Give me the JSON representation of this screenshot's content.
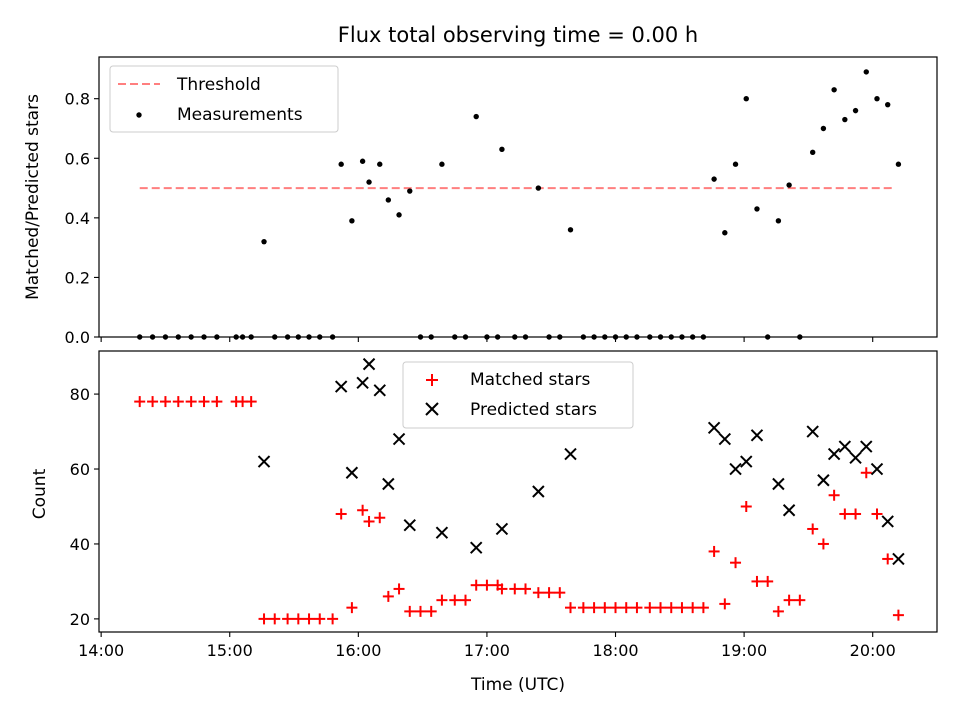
{
  "chart_data": [
    {
      "type": "scatter",
      "title": "Flux total observing time = 0.00 h",
      "xlabel": "",
      "ylabel": "Matched/Predicted stars",
      "x_ticks": [
        "14:00",
        "15:00",
        "16:00",
        "17:00",
        "18:00",
        "19:00",
        "20:00"
      ],
      "y_ticks": [
        "0.0",
        "0.2",
        "0.4",
        "0.6",
        "0.8"
      ],
      "xlim": [
        "13:59",
        "20:30"
      ],
      "ylim": [
        0.0,
        0.94
      ],
      "grid": false,
      "legend": {
        "placement": "top-left",
        "entries": [
          "Threshold",
          "Measurements"
        ]
      },
      "threshold": {
        "name": "Threshold",
        "value": 0.5,
        "x_start": "14:18",
        "x_end": "20:10",
        "style": "dashed",
        "color": "#ff7f7f"
      },
      "series": [
        {
          "name": "Measurements",
          "color": "#000000",
          "points": [
            [
              "14:18",
              0.0
            ],
            [
              "14:24",
              0.0
            ],
            [
              "14:30",
              0.0
            ],
            [
              "14:36",
              0.0
            ],
            [
              "14:42",
              0.0
            ],
            [
              "14:48",
              0.0
            ],
            [
              "14:54",
              0.0
            ],
            [
              "15:03",
              0.0
            ],
            [
              "15:06",
              0.0
            ],
            [
              "15:10",
              0.0
            ],
            [
              "15:16",
              0.32
            ],
            [
              "15:21",
              0.0
            ],
            [
              "15:27",
              0.0
            ],
            [
              "15:32",
              0.0
            ],
            [
              "15:37",
              0.0
            ],
            [
              "15:42",
              0.0
            ],
            [
              "15:48",
              0.0
            ],
            [
              "15:52",
              0.58
            ],
            [
              "15:57",
              0.39
            ],
            [
              "16:02",
              0.59
            ],
            [
              "16:05",
              0.52
            ],
            [
              "16:10",
              0.58
            ],
            [
              "16:14",
              0.46
            ],
            [
              "16:19",
              0.41
            ],
            [
              "16:24",
              0.49
            ],
            [
              "16:29",
              0.0
            ],
            [
              "16:34",
              0.0
            ],
            [
              "16:39",
              0.58
            ],
            [
              "16:45",
              0.0
            ],
            [
              "16:50",
              0.0
            ],
            [
              "16:55",
              0.74
            ],
            [
              "17:00",
              0.0
            ],
            [
              "17:05",
              0.0
            ],
            [
              "17:07",
              0.63
            ],
            [
              "17:13",
              0.0
            ],
            [
              "17:18",
              0.0
            ],
            [
              "17:24",
              0.5
            ],
            [
              "17:29",
              0.0
            ],
            [
              "17:34",
              0.0
            ],
            [
              "17:39",
              0.36
            ],
            [
              "17:45",
              0.0
            ],
            [
              "17:50",
              0.0
            ],
            [
              "17:55",
              0.0
            ],
            [
              "18:00",
              0.0
            ],
            [
              "18:05",
              0.0
            ],
            [
              "18:10",
              0.0
            ],
            [
              "18:16",
              0.0
            ],
            [
              "18:21",
              0.0
            ],
            [
              "18:26",
              0.0
            ],
            [
              "18:31",
              0.0
            ],
            [
              "18:36",
              0.0
            ],
            [
              "18:41",
              0.0
            ],
            [
              "18:46",
              0.53
            ],
            [
              "18:51",
              0.35
            ],
            [
              "18:56",
              0.58
            ],
            [
              "19:01",
              0.8
            ],
            [
              "19:06",
              0.43
            ],
            [
              "19:11",
              0.0
            ],
            [
              "19:16",
              0.39
            ],
            [
              "19:21",
              0.51
            ],
            [
              "19:26",
              0.0
            ],
            [
              "19:32",
              0.62
            ],
            [
              "19:37",
              0.7
            ],
            [
              "19:42",
              0.83
            ],
            [
              "19:47",
              0.73
            ],
            [
              "19:52",
              0.76
            ],
            [
              "19:57",
              0.89
            ],
            [
              "20:02",
              0.8
            ],
            [
              "20:07",
              0.78
            ],
            [
              "20:12",
              0.58
            ]
          ]
        }
      ]
    },
    {
      "type": "scatter",
      "title": "",
      "xlabel": "Time (UTC)",
      "ylabel": "Count",
      "x_ticks": [
        "14:00",
        "15:00",
        "16:00",
        "17:00",
        "18:00",
        "19:00",
        "20:00"
      ],
      "y_ticks": [
        "20",
        "40",
        "60",
        "80"
      ],
      "xlim": [
        "13:59",
        "20:30"
      ],
      "ylim": [
        16.5,
        91.5
      ],
      "grid": false,
      "legend": {
        "placement": "top-center",
        "entries": [
          "Matched stars",
          "Predicted stars"
        ]
      },
      "series": [
        {
          "name": "Matched stars",
          "marker": "plus",
          "color": "#ff0000",
          "points": [
            [
              "14:18",
              78
            ],
            [
              "14:24",
              78
            ],
            [
              "14:30",
              78
            ],
            [
              "14:36",
              78
            ],
            [
              "14:42",
              78
            ],
            [
              "14:48",
              78
            ],
            [
              "14:54",
              78
            ],
            [
              "15:03",
              78
            ],
            [
              "15:06",
              78
            ],
            [
              "15:10",
              78
            ],
            [
              "15:16",
              20
            ],
            [
              "15:21",
              20
            ],
            [
              "15:27",
              20
            ],
            [
              "15:32",
              20
            ],
            [
              "15:37",
              20
            ],
            [
              "15:42",
              20
            ],
            [
              "15:48",
              20
            ],
            [
              "15:52",
              48
            ],
            [
              "15:57",
              23
            ],
            [
              "16:02",
              49
            ],
            [
              "16:05",
              46
            ],
            [
              "16:10",
              47
            ],
            [
              "16:14",
              26
            ],
            [
              "16:19",
              28
            ],
            [
              "16:24",
              22
            ],
            [
              "16:29",
              22
            ],
            [
              "16:34",
              22
            ],
            [
              "16:39",
              25
            ],
            [
              "16:45",
              25
            ],
            [
              "16:50",
              25
            ],
            [
              "16:55",
              29
            ],
            [
              "17:00",
              29
            ],
            [
              "17:05",
              29
            ],
            [
              "17:07",
              28
            ],
            [
              "17:13",
              28
            ],
            [
              "17:18",
              28
            ],
            [
              "17:24",
              27
            ],
            [
              "17:29",
              27
            ],
            [
              "17:34",
              27
            ],
            [
              "17:39",
              23
            ],
            [
              "17:45",
              23
            ],
            [
              "17:50",
              23
            ],
            [
              "17:55",
              23
            ],
            [
              "18:00",
              23
            ],
            [
              "18:05",
              23
            ],
            [
              "18:10",
              23
            ],
            [
              "18:16",
              23
            ],
            [
              "18:21",
              23
            ],
            [
              "18:26",
              23
            ],
            [
              "18:31",
              23
            ],
            [
              "18:36",
              23
            ],
            [
              "18:41",
              23
            ],
            [
              "18:46",
              38
            ],
            [
              "18:51",
              24
            ],
            [
              "18:56",
              35
            ],
            [
              "19:01",
              50
            ],
            [
              "19:06",
              30
            ],
            [
              "19:11",
              30
            ],
            [
              "19:16",
              22
            ],
            [
              "19:21",
              25
            ],
            [
              "19:26",
              25
            ],
            [
              "19:32",
              44
            ],
            [
              "19:37",
              40
            ],
            [
              "19:42",
              53
            ],
            [
              "19:47",
              48
            ],
            [
              "19:52",
              48
            ],
            [
              "19:57",
              59
            ],
            [
              "20:02",
              48
            ],
            [
              "20:07",
              36
            ],
            [
              "20:12",
              21
            ]
          ]
        },
        {
          "name": "Predicted stars",
          "marker": "x",
          "color": "#000000",
          "points": [
            [
              "15:16",
              62
            ],
            [
              "15:52",
              82
            ],
            [
              "15:57",
              59
            ],
            [
              "16:02",
              83
            ],
            [
              "16:05",
              88
            ],
            [
              "16:10",
              81
            ],
            [
              "16:14",
              56
            ],
            [
              "16:19",
              68
            ],
            [
              "16:24",
              45
            ],
            [
              "16:39",
              43
            ],
            [
              "16:55",
              39
            ],
            [
              "17:07",
              44
            ],
            [
              "17:24",
              54
            ],
            [
              "17:39",
              64
            ],
            [
              "18:46",
              71
            ],
            [
              "18:51",
              68
            ],
            [
              "18:56",
              60
            ],
            [
              "19:01",
              62
            ],
            [
              "19:06",
              69
            ],
            [
              "19:16",
              56
            ],
            [
              "19:21",
              49
            ],
            [
              "19:32",
              70
            ],
            [
              "19:37",
              57
            ],
            [
              "19:42",
              64
            ],
            [
              "19:47",
              66
            ],
            [
              "19:52",
              63
            ],
            [
              "19:57",
              66
            ],
            [
              "20:02",
              60
            ],
            [
              "20:07",
              46
            ],
            [
              "20:12",
              36
            ]
          ]
        }
      ]
    }
  ]
}
